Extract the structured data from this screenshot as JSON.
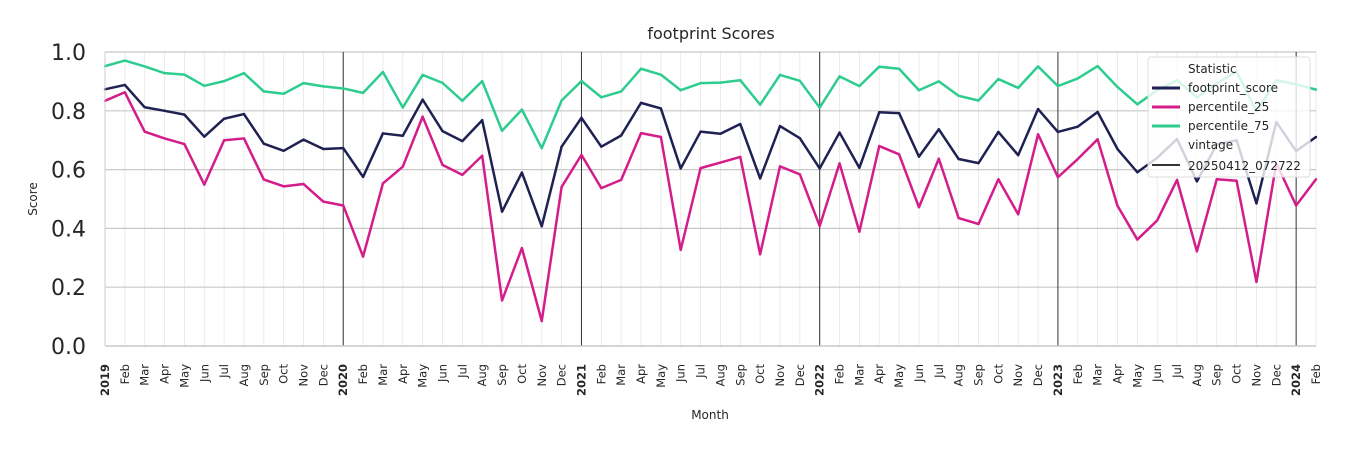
{
  "chart_data": {
    "type": "line",
    "title": "footprint Scores",
    "xlabel": "Month",
    "ylabel": "Score",
    "ylim": [
      0,
      1
    ],
    "yticks": [
      "0.0",
      "0.2",
      "0.4",
      "0.6",
      "0.8",
      "1.0"
    ],
    "categories": [
      "2019",
      "Feb",
      "Mar",
      "Apr",
      "May",
      "Jun",
      "Jul",
      "Aug",
      "Sep",
      "Oct",
      "Nov",
      "Dec",
      "2020",
      "Feb",
      "Mar",
      "Apr",
      "May",
      "Jun",
      "Jul",
      "Aug",
      "Sep",
      "Oct",
      "Nov",
      "Dec",
      "2021",
      "Feb",
      "Mar",
      "Apr",
      "May",
      "Jun",
      "Jul",
      "Aug",
      "Sep",
      "Oct",
      "Nov",
      "Dec",
      "2022",
      "Feb",
      "Mar",
      "Apr",
      "May",
      "Jun",
      "Jul",
      "Aug",
      "Sep",
      "Oct",
      "Nov",
      "Dec",
      "2023",
      "Feb",
      "Mar",
      "Apr",
      "May",
      "Jun",
      "Jul",
      "Aug",
      "Sep",
      "Oct",
      "Nov",
      "Dec",
      "2024",
      "Feb"
    ],
    "year_markers": [
      "2020",
      "2021",
      "2022",
      "2023",
      "2024"
    ],
    "series": [
      {
        "name": "footprint_score",
        "color": "#1f2152",
        "values": [
          0.873,
          0.888,
          0.812,
          0.8,
          0.787,
          0.712,
          0.773,
          0.789,
          0.688,
          0.664,
          0.702,
          0.67,
          0.673,
          0.575,
          0.723,
          0.715,
          0.838,
          0.731,
          0.697,
          0.768,
          0.457,
          0.59,
          0.407,
          0.678,
          0.776,
          0.678,
          0.716,
          0.827,
          0.808,
          0.604,
          0.729,
          0.722,
          0.755,
          0.57,
          0.748,
          0.707,
          0.604,
          0.726,
          0.606,
          0.795,
          0.792,
          0.644,
          0.737,
          0.636,
          0.622,
          0.728,
          0.649,
          0.806,
          0.728,
          0.746,
          0.796,
          0.67,
          0.591,
          0.64,
          0.704,
          0.56,
          0.685,
          0.7,
          0.485,
          0.762,
          0.663,
          0.711
        ]
      },
      {
        "name": "percentile_25",
        "color": "#d41c8a",
        "values": [
          0.834,
          0.863,
          0.729,
          0.706,
          0.687,
          0.549,
          0.7,
          0.706,
          0.566,
          0.543,
          0.551,
          0.491,
          0.478,
          0.304,
          0.553,
          0.61,
          0.78,
          0.616,
          0.582,
          0.647,
          0.155,
          0.333,
          0.085,
          0.541,
          0.65,
          0.537,
          0.565,
          0.724,
          0.711,
          0.327,
          0.605,
          0.624,
          0.643,
          0.312,
          0.611,
          0.584,
          0.408,
          0.621,
          0.389,
          0.68,
          0.652,
          0.472,
          0.637,
          0.435,
          0.415,
          0.567,
          0.448,
          0.72,
          0.574,
          0.636,
          0.703,
          0.477,
          0.362,
          0.427,
          0.565,
          0.322,
          0.567,
          0.562,
          0.218,
          0.622,
          0.478,
          0.567
        ]
      },
      {
        "name": "percentile_75",
        "color": "#2ecc8f",
        "values": [
          0.952,
          0.971,
          0.951,
          0.928,
          0.923,
          0.885,
          0.901,
          0.928,
          0.866,
          0.858,
          0.894,
          0.883,
          0.876,
          0.861,
          0.932,
          0.811,
          0.922,
          0.895,
          0.834,
          0.901,
          0.732,
          0.804,
          0.673,
          0.835,
          0.901,
          0.846,
          0.866,
          0.943,
          0.923,
          0.87,
          0.894,
          0.896,
          0.904,
          0.821,
          0.922,
          0.902,
          0.811,
          0.917,
          0.884,
          0.95,
          0.943,
          0.87,
          0.9,
          0.851,
          0.835,
          0.908,
          0.878,
          0.951,
          0.884,
          0.91,
          0.952,
          0.881,
          0.822,
          0.87,
          0.904,
          0.845,
          0.893,
          0.934,
          0.797,
          0.904,
          0.89,
          0.872
        ]
      }
    ],
    "legend": {
      "position": "top-right",
      "stat_title": "Statistic",
      "vintage_title": "vintage",
      "vintage_label": "20250412_072722",
      "vintage_color": "#333333"
    },
    "grid": true
  }
}
